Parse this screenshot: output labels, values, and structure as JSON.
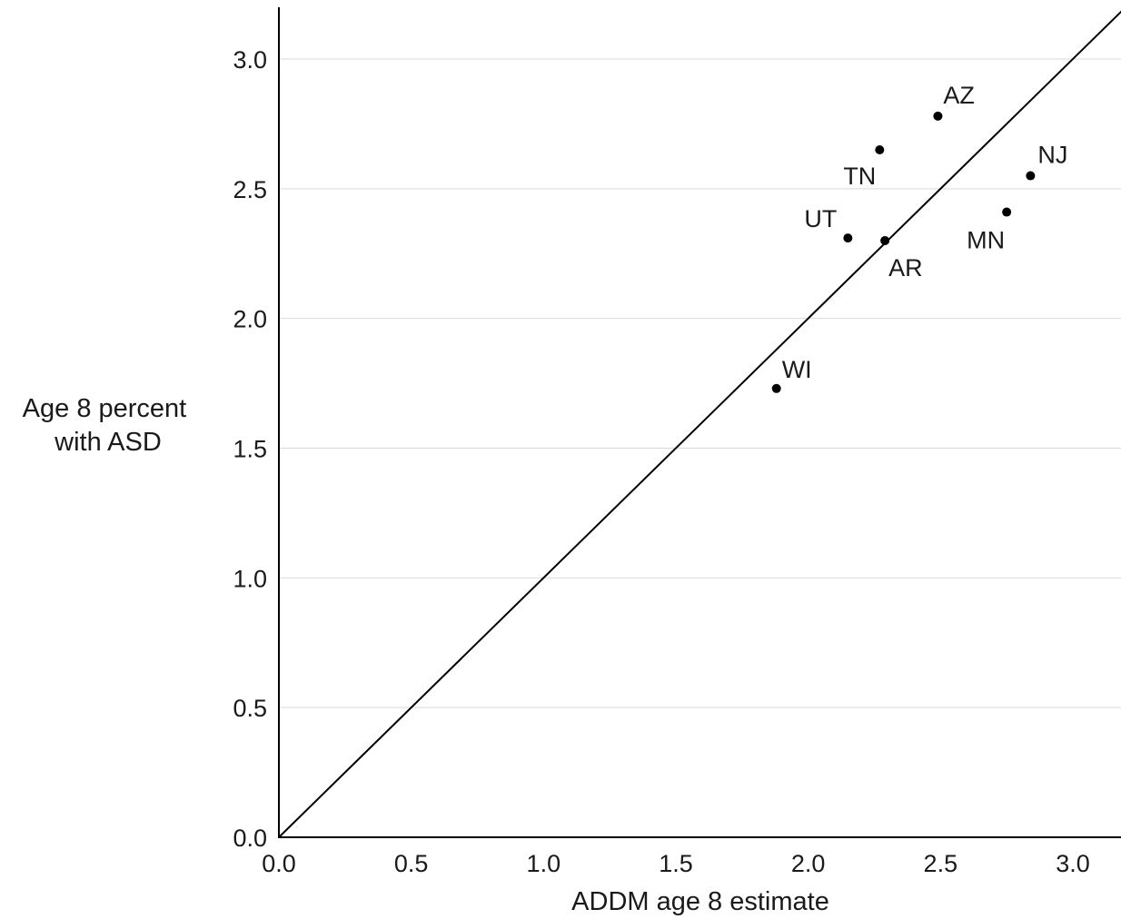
{
  "chart_data": {
    "type": "scatter",
    "title": "",
    "xlabel": "ADDM age 8 estimate",
    "ylabel_lines": [
      "Age 8 percent",
      "with ASD"
    ],
    "xlim": [
      0,
      3.2
    ],
    "ylim": [
      0,
      3.2
    ],
    "x_ticks": [
      "0.0",
      "0.5",
      "1.0",
      "1.5",
      "2.0",
      "2.5",
      "3.0"
    ],
    "y_ticks": [
      "0.0",
      "0.5",
      "1.0",
      "1.5",
      "2.0",
      "2.5",
      "3.0"
    ],
    "grid": "horizontal",
    "reference_line": "y = x",
    "points": [
      {
        "label": "AZ",
        "x": 2.49,
        "y": 2.78
      },
      {
        "label": "TN",
        "x": 2.27,
        "y": 2.65
      },
      {
        "label": "NJ",
        "x": 2.84,
        "y": 2.55
      },
      {
        "label": "MN",
        "x": 2.75,
        "y": 2.41
      },
      {
        "label": "UT",
        "x": 2.15,
        "y": 2.31
      },
      {
        "label": "AR",
        "x": 2.29,
        "y": 2.3
      },
      {
        "label": "WI",
        "x": 1.88,
        "y": 1.73
      }
    ],
    "colors": {
      "points": "#000000",
      "line": "#000000",
      "grid": "#d9d9d9"
    }
  }
}
